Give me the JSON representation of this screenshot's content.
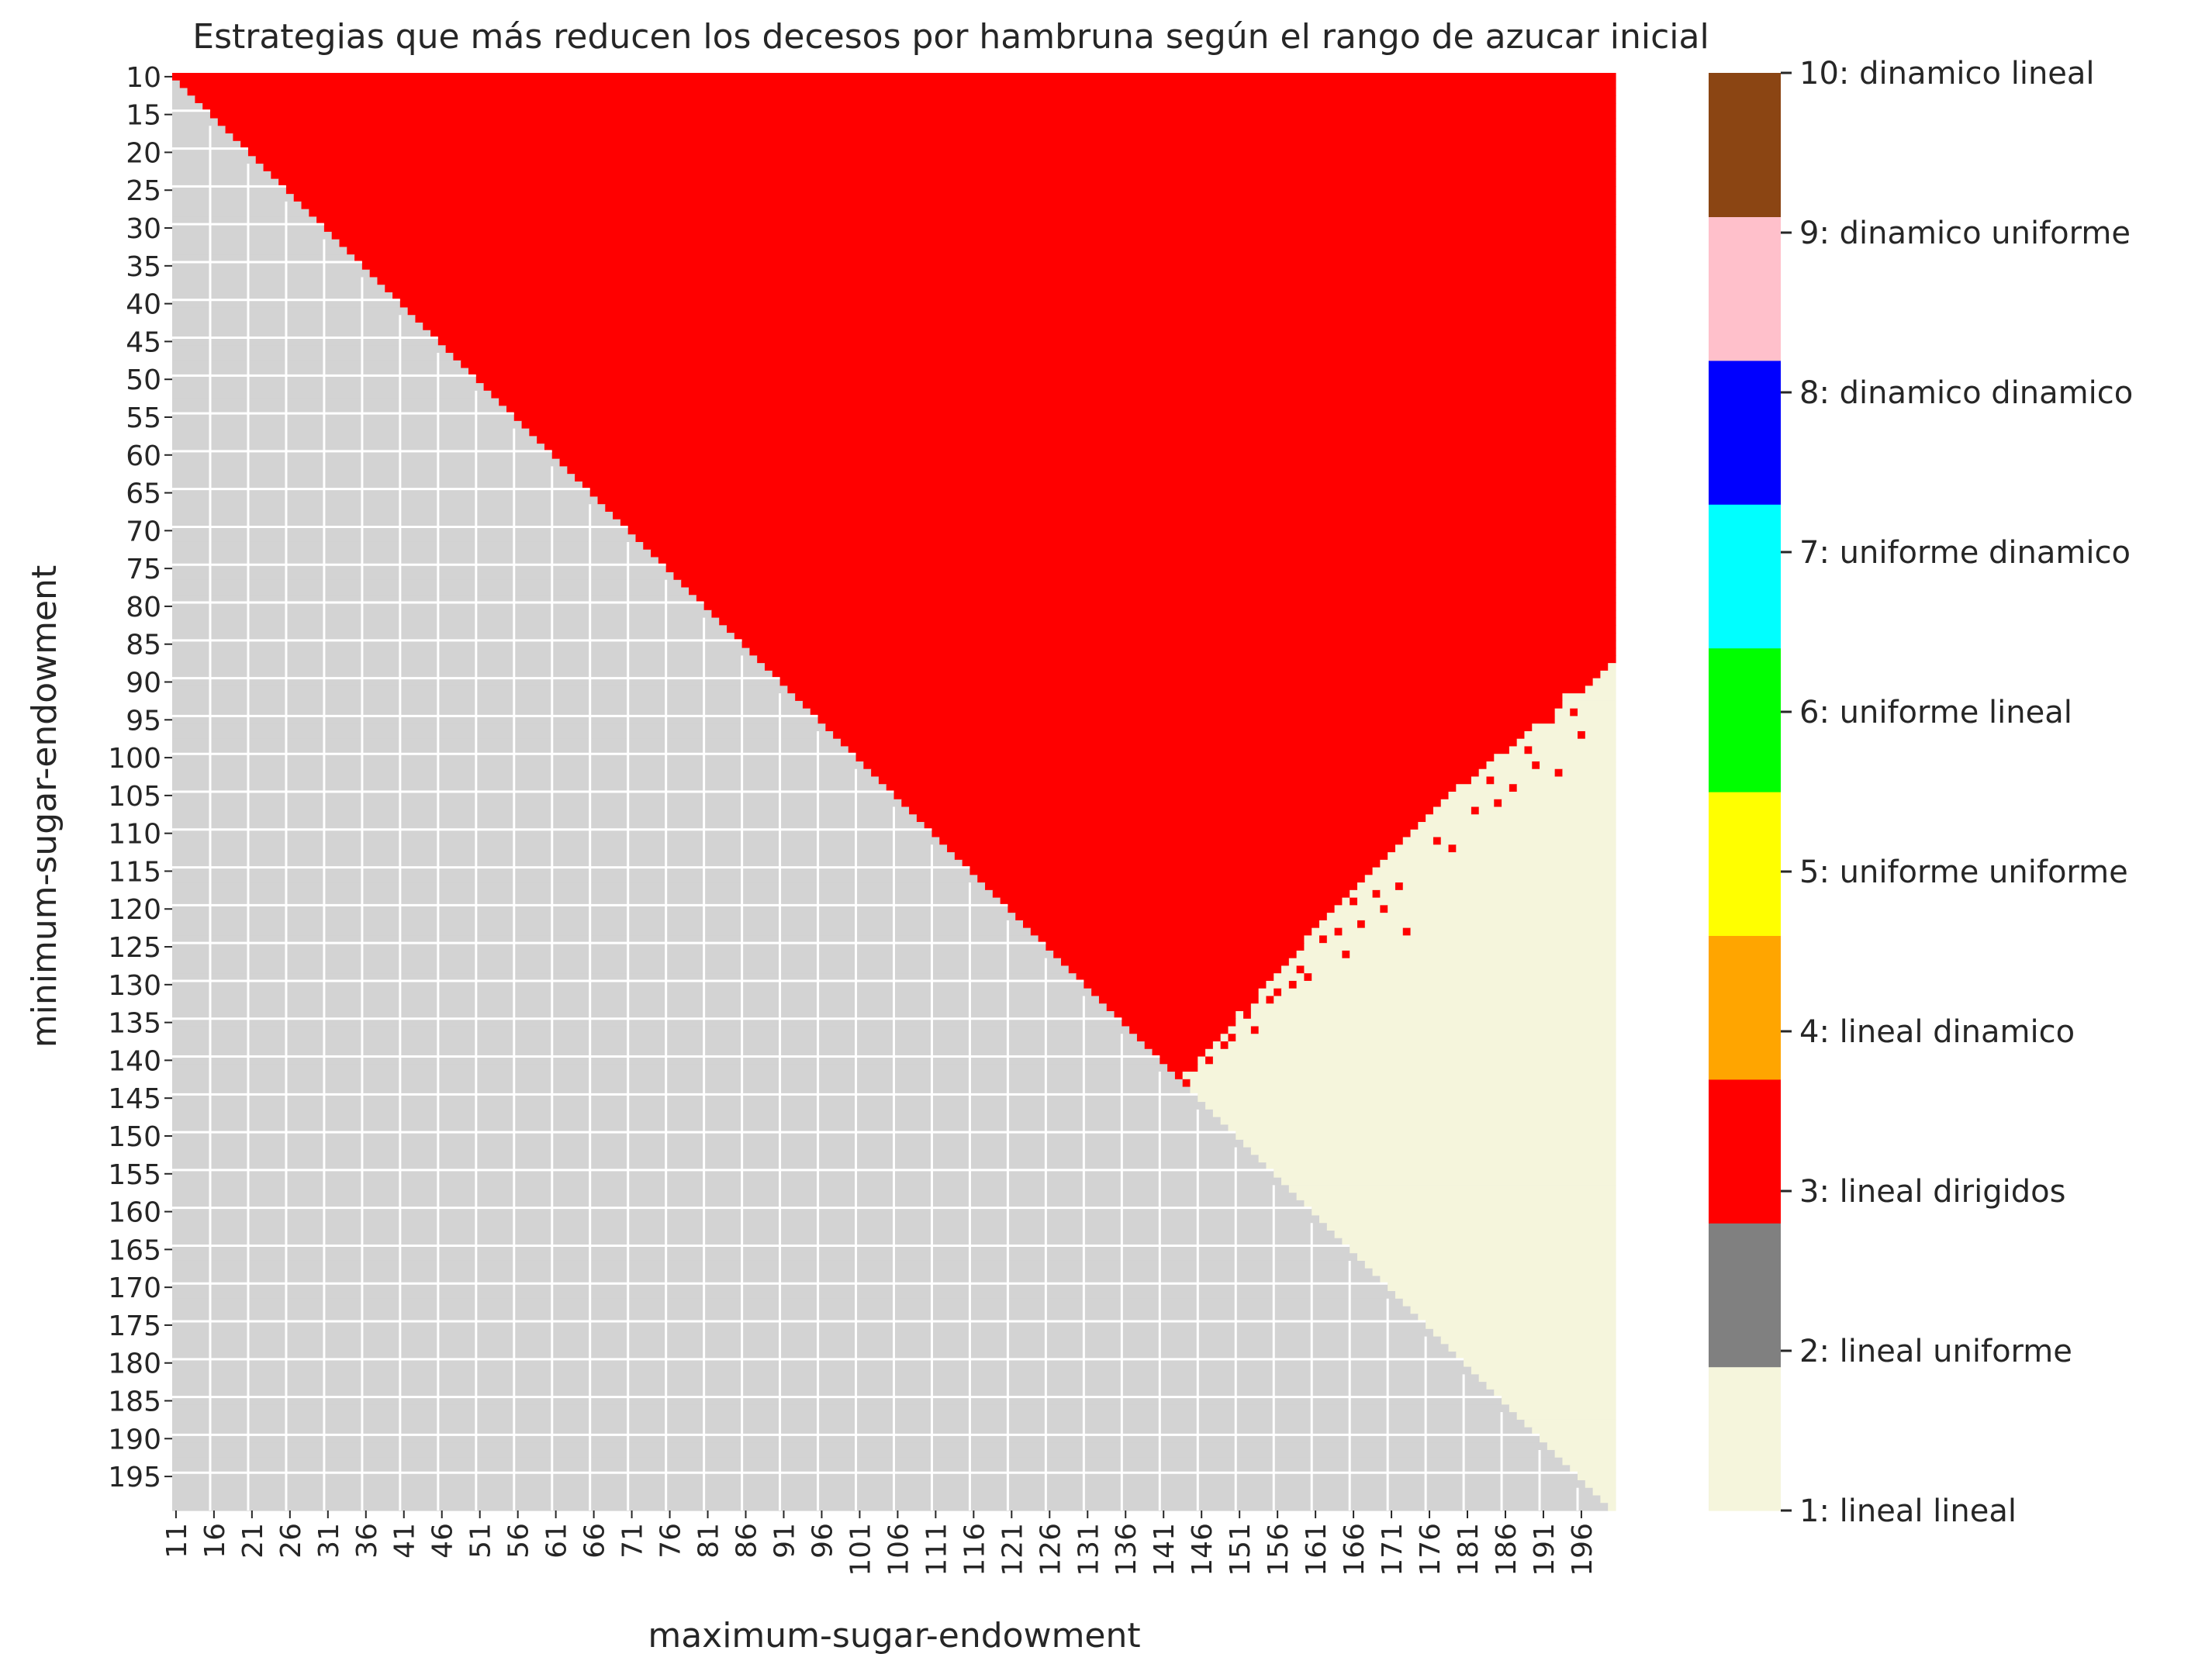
{
  "chart_data": {
    "type": "heatmap",
    "title": "Estrategias que más reducen los decesos por hambruna según el rango de azucar inicial",
    "xlabel": "maximum-sugar-endowment",
    "ylabel": "minimum-sugar-endowment",
    "x_range": [
      11,
      200
    ],
    "y_range": [
      10,
      199
    ],
    "x_tick_labels": [
      "11",
      "16",
      "21",
      "26",
      "31",
      "36",
      "41",
      "46",
      "51",
      "56",
      "61",
      "66",
      "71",
      "76",
      "81",
      "86",
      "91",
      "96",
      "101",
      "106",
      "111",
      "116",
      "121",
      "126",
      "131",
      "136",
      "141",
      "146",
      "151",
      "156",
      "161",
      "166",
      "171",
      "176",
      "181",
      "186",
      "191",
      "196"
    ],
    "y_tick_labels": [
      "10",
      "15",
      "20",
      "25",
      "30",
      "35",
      "40",
      "45",
      "50",
      "55",
      "60",
      "65",
      "70",
      "75",
      "80",
      "85",
      "90",
      "95",
      "100",
      "105",
      "110",
      "115",
      "120",
      "125",
      "130",
      "135",
      "140",
      "145",
      "150",
      "155",
      "160",
      "165",
      "170",
      "175",
      "180",
      "185",
      "190",
      "195"
    ],
    "cell_rule": {
      "invalid_when": "max <= min",
      "invalid_color": "#d3d3d3",
      "category_3_when": "min < boundary(max)",
      "otherwise_category": 1,
      "boundary_points": [
        [
          143,
          143
        ],
        [
          150,
          136
        ],
        [
          160,
          124
        ],
        [
          170,
          114
        ],
        [
          180,
          104
        ],
        [
          190,
          96
        ],
        [
          200,
          88
        ]
      ]
    },
    "scattered_cells": {
      "category_3_below_boundary": [
        [
          144,
          143
        ],
        [
          145,
          141
        ],
        [
          146,
          147
        ],
        [
          147,
          140
        ],
        [
          149,
          138
        ],
        [
          150,
          137
        ],
        [
          152,
          134
        ],
        [
          153,
          136
        ],
        [
          155,
          132
        ],
        [
          156,
          131
        ],
        [
          158,
          130
        ],
        [
          159,
          128
        ],
        [
          160,
          129
        ],
        [
          161,
          121
        ],
        [
          162,
          124
        ],
        [
          163,
          120
        ],
        [
          164,
          123
        ],
        [
          165,
          126
        ],
        [
          166,
          119
        ],
        [
          167,
          122
        ],
        [
          169,
          118
        ],
        [
          170,
          120
        ],
        [
          172,
          117
        ],
        [
          173,
          123
        ],
        [
          177,
          111
        ],
        [
          179,
          112
        ],
        [
          182,
          107
        ],
        [
          184,
          103
        ],
        [
          185,
          106
        ],
        [
          187,
          104
        ],
        [
          189,
          99
        ],
        [
          190,
          101
        ],
        [
          192,
          95
        ],
        [
          193,
          102
        ],
        [
          195,
          94
        ],
        [
          196,
          97
        ]
      ],
      "category_1_above_boundary": [
        [
          151,
          134
        ],
        [
          154,
          131
        ],
        [
          157,
          128
        ],
        [
          161,
          126
        ],
        [
          164,
          121
        ],
        [
          168,
          118
        ],
        [
          171,
          115
        ],
        [
          174,
          112
        ],
        [
          178,
          109
        ],
        [
          181,
          106
        ],
        [
          186,
          101
        ],
        [
          188,
          98
        ],
        [
          191,
          96
        ],
        [
          194,
          92
        ],
        [
          197,
          91
        ],
        [
          199,
          89
        ]
      ]
    },
    "colorbar": {
      "categories": [
        {
          "value": 1,
          "label": "1: lineal lineal",
          "color": "#f5f5dc"
        },
        {
          "value": 2,
          "label": "2: lineal uniforme",
          "color": "#808080"
        },
        {
          "value": 3,
          "label": "3: lineal dirigidos",
          "color": "#ff0000"
        },
        {
          "value": 4,
          "label": "4: lineal dinamico",
          "color": "#ffa500"
        },
        {
          "value": 5,
          "label": "5: uniforme uniforme",
          "color": "#ffff00"
        },
        {
          "value": 6,
          "label": "6: uniforme lineal",
          "color": "#00ff00"
        },
        {
          "value": 7,
          "label": "7: uniforme dinamico",
          "color": "#00ffff"
        },
        {
          "value": 8,
          "label": "8: dinamico dinamico",
          "color": "#0000ff"
        },
        {
          "value": 9,
          "label": "9: dinamico uniforme",
          "color": "#ffc0cb"
        },
        {
          "value": 10,
          "label": "10: dinamico lineal",
          "color": "#8b4513"
        }
      ]
    },
    "grid": false,
    "legend_placement": "right"
  }
}
